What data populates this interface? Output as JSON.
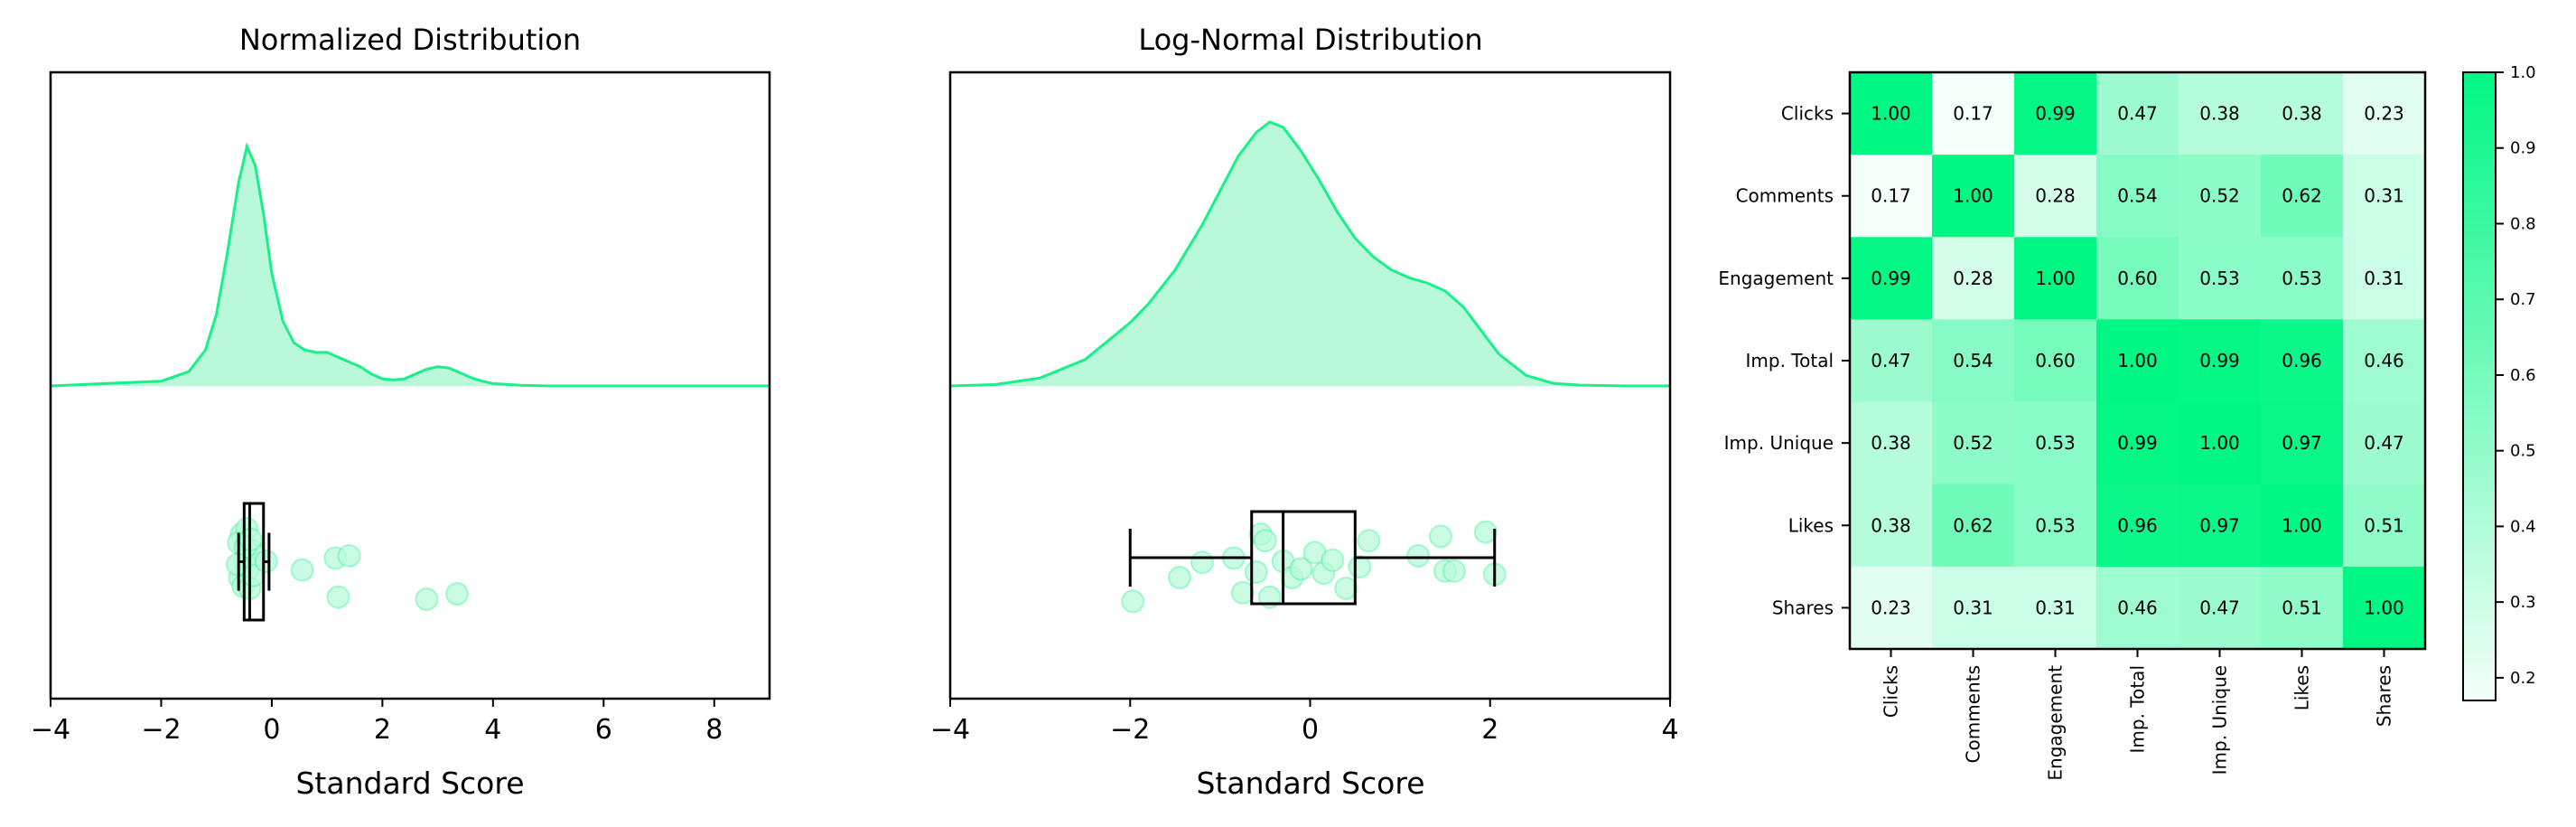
{
  "colors": {
    "accent": "#1af08a",
    "fill": "#b9f9da",
    "scatter_fill": "#b9f9da",
    "box": "#000000",
    "heat_low": "#f4fffa",
    "heat_high": "#00f784"
  },
  "chart_data": [
    {
      "type": "area",
      "subtype": "kde-with-boxplot",
      "title": "Normalized Distribution",
      "xlabel": "Standard Score",
      "xlim": [
        -4,
        9
      ],
      "xticks": [
        -4,
        -2,
        0,
        2,
        4,
        6,
        8
      ],
      "xtick_labels": [
        "−4",
        "−2",
        "0",
        "2",
        "4",
        "6",
        "8"
      ],
      "kde": {
        "x": [
          -4,
          -2,
          -1.5,
          -1.2,
          -1,
          -0.8,
          -0.6,
          -0.45,
          -0.3,
          -0.15,
          0,
          0.2,
          0.4,
          0.6,
          0.8,
          1,
          1.2,
          1.4,
          1.6,
          1.8,
          2,
          2.2,
          2.4,
          2.6,
          2.8,
          3,
          3.2,
          3.4,
          3.6,
          3.8,
          4,
          4.5,
          5,
          9
        ],
        "density": [
          0,
          0.02,
          0.06,
          0.15,
          0.3,
          0.56,
          0.85,
          1.0,
          0.92,
          0.72,
          0.47,
          0.27,
          0.18,
          0.15,
          0.14,
          0.14,
          0.12,
          0.1,
          0.08,
          0.05,
          0.03,
          0.025,
          0.03,
          0.05,
          0.07,
          0.08,
          0.075,
          0.055,
          0.035,
          0.02,
          0.01,
          0.003,
          0,
          0
        ]
      },
      "box": {
        "whisker_low": -0.6,
        "q1": -0.5,
        "median": -0.4,
        "q3": -0.15,
        "whisker_high": -0.05
      },
      "points": [
        {
          "x": -0.55,
          "y": 0.3
        },
        {
          "x": -0.45,
          "y": 0.25
        },
        {
          "x": -0.6,
          "y": 0.38
        },
        {
          "x": -0.35,
          "y": 0.45
        },
        {
          "x": -0.5,
          "y": 0.55
        },
        {
          "x": -0.42,
          "y": 0.62
        },
        {
          "x": -0.58,
          "y": 0.7
        },
        {
          "x": -0.3,
          "y": 0.5
        },
        {
          "x": -0.48,
          "y": 0.42
        },
        {
          "x": -0.38,
          "y": 0.35
        },
        {
          "x": -0.52,
          "y": 0.78
        },
        {
          "x": -0.4,
          "y": 0.8
        },
        {
          "x": -0.62,
          "y": 0.58
        },
        {
          "x": -0.33,
          "y": 0.68
        },
        {
          "x": -0.1,
          "y": 0.55
        },
        {
          "x": 0.55,
          "y": 0.63
        },
        {
          "x": 1.15,
          "y": 0.52
        },
        {
          "x": 1.4,
          "y": 0.5
        },
        {
          "x": 1.2,
          "y": 0.88
        },
        {
          "x": 2.8,
          "y": 0.9
        },
        {
          "x": 3.35,
          "y": 0.85
        }
      ]
    },
    {
      "type": "area",
      "subtype": "kde-with-boxplot",
      "title": "Log-Normal Distribution",
      "xlabel": "Standard Score",
      "xlim": [
        -4,
        4
      ],
      "xticks": [
        -4,
        -2,
        0,
        2,
        4
      ],
      "xtick_labels": [
        "−4",
        "−2",
        "0",
        "2",
        "4"
      ],
      "kde": {
        "x": [
          -4,
          -3.5,
          -3,
          -2.5,
          -2,
          -1.8,
          -1.5,
          -1.2,
          -1,
          -0.8,
          -0.6,
          -0.45,
          -0.3,
          -0.1,
          0.1,
          0.3,
          0.5,
          0.7,
          0.9,
          1.1,
          1.3,
          1.5,
          1.7,
          1.9,
          2.1,
          2.4,
          2.7,
          3,
          3.5,
          4
        ],
        "density": [
          0,
          0.005,
          0.03,
          0.1,
          0.24,
          0.31,
          0.44,
          0.61,
          0.74,
          0.87,
          0.96,
          1.0,
          0.98,
          0.89,
          0.78,
          0.66,
          0.56,
          0.49,
          0.44,
          0.41,
          0.39,
          0.36,
          0.3,
          0.21,
          0.12,
          0.04,
          0.01,
          0.003,
          0,
          0
        ]
      },
      "box": {
        "whisker_low": -2.0,
        "q1": -0.65,
        "median": -0.3,
        "q3": 0.5,
        "whisker_high": 2.05
      },
      "points": [
        {
          "x": -1.97,
          "y": 0.92
        },
        {
          "x": -1.45,
          "y": 0.7
        },
        {
          "x": -1.2,
          "y": 0.56
        },
        {
          "x": -0.85,
          "y": 0.52
        },
        {
          "x": -0.75,
          "y": 0.84
        },
        {
          "x": -0.6,
          "y": 0.65
        },
        {
          "x": -0.55,
          "y": 0.3
        },
        {
          "x": -0.5,
          "y": 0.36
        },
        {
          "x": -0.45,
          "y": 0.88
        },
        {
          "x": -0.3,
          "y": 0.55
        },
        {
          "x": -0.2,
          "y": 0.7
        },
        {
          "x": -0.1,
          "y": 0.62
        },
        {
          "x": 0.05,
          "y": 0.47
        },
        {
          "x": 0.15,
          "y": 0.66
        },
        {
          "x": 0.25,
          "y": 0.54
        },
        {
          "x": 0.4,
          "y": 0.8
        },
        {
          "x": 0.55,
          "y": 0.6
        },
        {
          "x": 0.65,
          "y": 0.36
        },
        {
          "x": 1.2,
          "y": 0.5
        },
        {
          "x": 1.45,
          "y": 0.32
        },
        {
          "x": 1.5,
          "y": 0.64
        },
        {
          "x": 1.6,
          "y": 0.64
        },
        {
          "x": 1.95,
          "y": 0.28
        },
        {
          "x": 2.05,
          "y": 0.67
        }
      ]
    },
    {
      "type": "heatmap",
      "labels": [
        "Clicks",
        "Comments",
        "Engagement",
        "Imp. Total",
        "Imp. Unique",
        "Likes",
        "Shares"
      ],
      "matrix": [
        [
          1.0,
          0.17,
          0.99,
          0.47,
          0.38,
          0.38,
          0.23
        ],
        [
          0.17,
          1.0,
          0.28,
          0.54,
          0.52,
          0.62,
          0.31
        ],
        [
          0.99,
          0.28,
          1.0,
          0.6,
          0.53,
          0.53,
          0.31
        ],
        [
          0.47,
          0.54,
          0.6,
          1.0,
          0.99,
          0.96,
          0.46
        ],
        [
          0.38,
          0.52,
          0.53,
          0.99,
          1.0,
          0.97,
          0.47
        ],
        [
          0.38,
          0.62,
          0.53,
          0.96,
          0.97,
          1.0,
          0.51
        ],
        [
          0.23,
          0.31,
          0.31,
          0.46,
          0.47,
          0.51,
          1.0
        ]
      ],
      "cell_labels": [
        [
          "1.00",
          "0.17",
          "0.99",
          "0.47",
          "0.38",
          "0.38",
          "0.23"
        ],
        [
          "0.17",
          "1.00",
          "0.28",
          "0.54",
          "0.52",
          "0.62",
          "0.31"
        ],
        [
          "0.99",
          "0.28",
          "1.00",
          "0.60",
          "0.53",
          "0.53",
          "0.31"
        ],
        [
          "0.47",
          "0.54",
          "0.60",
          "1.00",
          "0.99",
          "0.96",
          "0.46"
        ],
        [
          "0.38",
          "0.52",
          "0.53",
          "0.99",
          "1.00",
          "0.97",
          "0.47"
        ],
        [
          "0.38",
          "0.62",
          "0.53",
          "0.96",
          "0.97",
          "1.00",
          "0.51"
        ],
        [
          "0.23",
          "0.31",
          "0.31",
          "0.46",
          "0.47",
          "0.51",
          "1.00"
        ]
      ],
      "colorbar": {
        "vmin": 0.17,
        "vmax": 1.0,
        "ticks": [
          0.2,
          0.3,
          0.4,
          0.5,
          0.6,
          0.7,
          0.8,
          0.9,
          1.0
        ],
        "tick_labels": [
          "0.2",
          "0.3",
          "0.4",
          "0.5",
          "0.6",
          "0.7",
          "0.8",
          "0.9",
          "1.0"
        ]
      }
    }
  ]
}
